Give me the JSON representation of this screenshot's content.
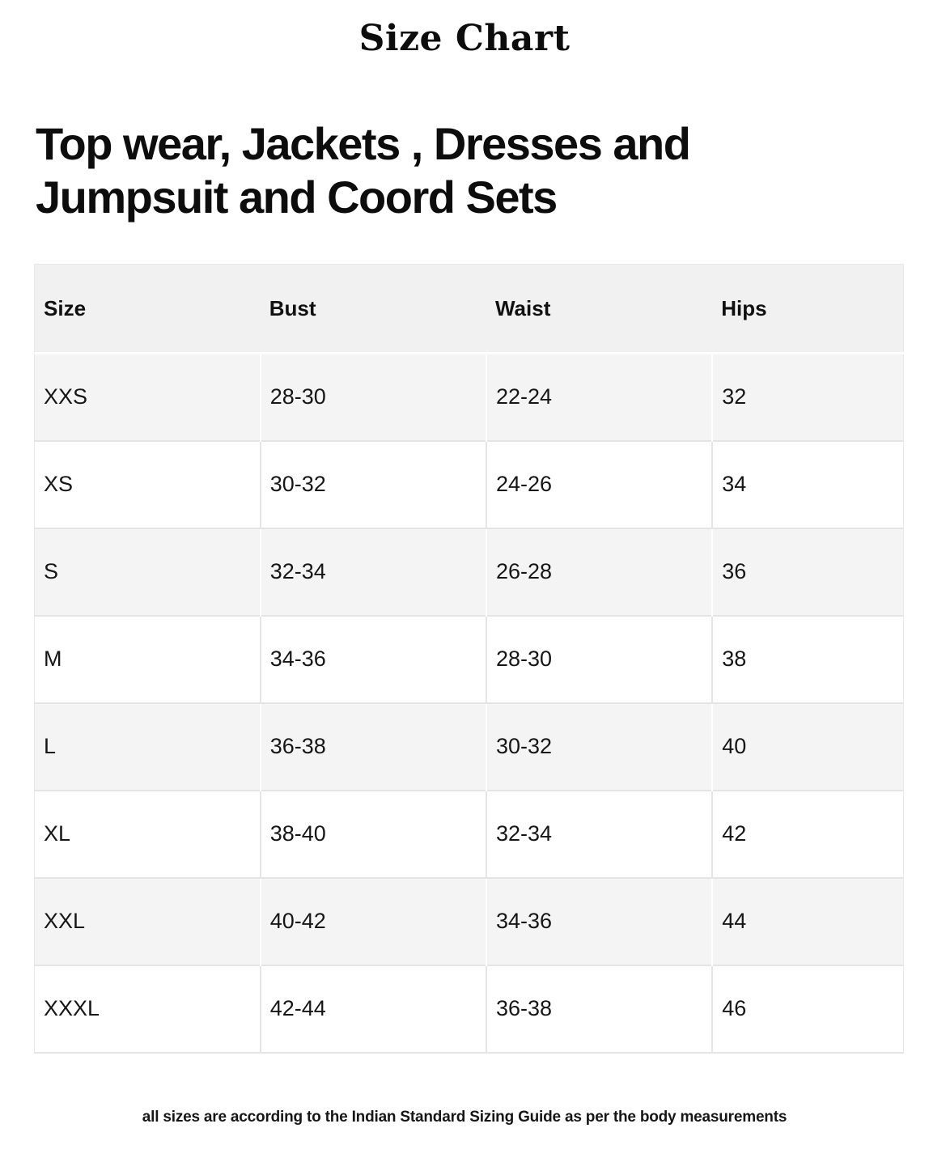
{
  "page": {
    "title": "Size Chart",
    "heading": "Top wear, Jackets , Dresses and Jumpsuit and Coord Sets",
    "footnote": "all sizes are according to the Indian Standard Sizing Guide as per the body measurements"
  },
  "size_table": {
    "columns": [
      "Size",
      "Bust",
      "Waist",
      "Hips"
    ],
    "rows": [
      [
        "XXS",
        "28-30",
        "22-24",
        "32"
      ],
      [
        "XS",
        "30-32",
        "24-26",
        "34"
      ],
      [
        "S",
        "32-34",
        "26-28",
        "36"
      ],
      [
        "M",
        "34-36",
        "28-30",
        "38"
      ],
      [
        "L",
        "36-38",
        "30-32",
        "40"
      ],
      [
        "XL",
        "38-40",
        "32-34",
        "42"
      ],
      [
        "XXL",
        "40-42",
        "34-36",
        "44"
      ],
      [
        "XXXL",
        "42-44",
        "36-38",
        "46"
      ]
    ]
  },
  "colors": {
    "page_background": "#ffffff",
    "header_row_background": "#f1f1f1",
    "alt_row_background": "#f4f4f4",
    "grid_line": "#e4e4e4",
    "text": "#111111"
  }
}
